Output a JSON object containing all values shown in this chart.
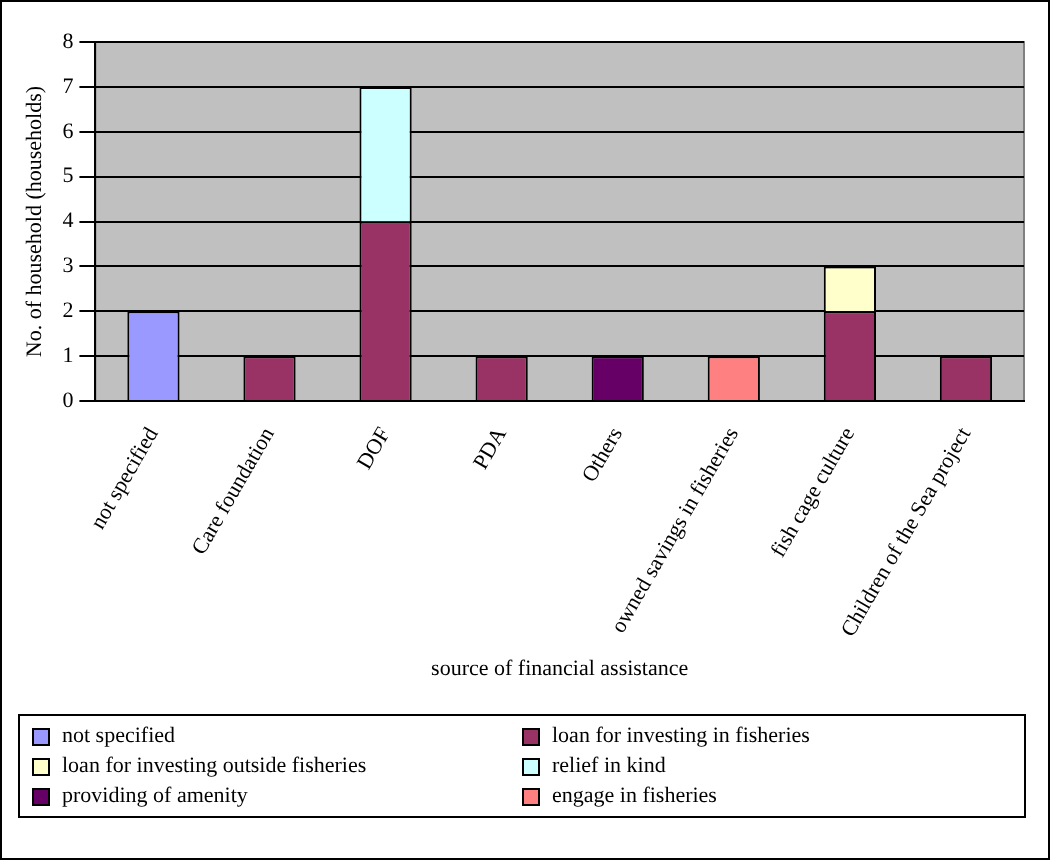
{
  "chart_data": {
    "type": "bar",
    "stacked": true,
    "xlabel": "source of financial assistance",
    "ylabel": "No. of household (households)",
    "categories": [
      "not specified",
      "Care foundation",
      "DOF",
      "PDA",
      "Others",
      "owned savings in fisheries",
      "fish cage culture",
      "Children of the Sea project"
    ],
    "series": [
      {
        "name": "not specified",
        "color": "#9999ff",
        "values": [
          2,
          null,
          null,
          null,
          null,
          null,
          null,
          null
        ]
      },
      {
        "name": "loan for investing in fisheries",
        "color": "#993366",
        "values": [
          null,
          1,
          4,
          1,
          null,
          null,
          2,
          1
        ]
      },
      {
        "name": "loan for investing outside fisheries",
        "color": "#ffffcc",
        "values": [
          null,
          null,
          null,
          null,
          null,
          null,
          1,
          null
        ]
      },
      {
        "name": "relief in kind",
        "color": "#ccffff",
        "values": [
          null,
          null,
          3,
          null,
          null,
          null,
          null,
          null
        ]
      },
      {
        "name": "providing of amenity",
        "color": "#660066",
        "values": [
          null,
          null,
          null,
          null,
          1,
          null,
          null,
          null
        ]
      },
      {
        "name": "engage in fisheries",
        "color": "#ff8080",
        "values": [
          null,
          null,
          null,
          null,
          null,
          1,
          null,
          null
        ]
      }
    ],
    "ylim": [
      0,
      8
    ],
    "yticks": [
      0,
      1,
      2,
      3,
      4,
      5,
      6,
      7,
      8
    ],
    "grid": "y",
    "legend": "bottom"
  }
}
